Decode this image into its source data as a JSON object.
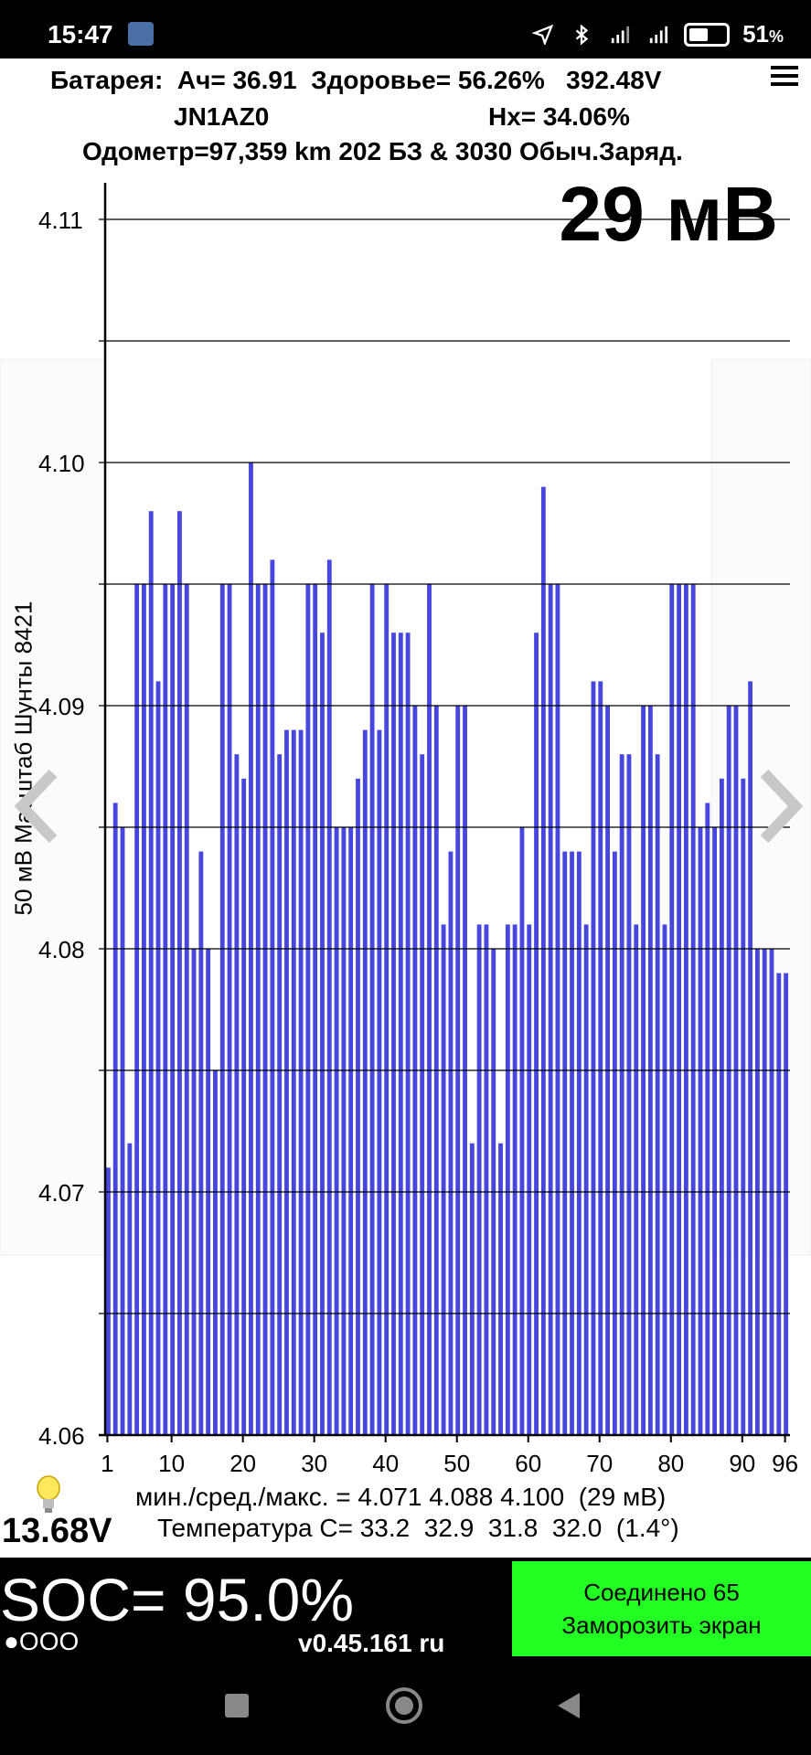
{
  "status_bar": {
    "time": "15:47",
    "battery_percent": "51",
    "battery_unit": "%",
    "icons": [
      "car-icon",
      "location-icon",
      "bluetooth-icon",
      "signal-icon",
      "signal-icon",
      "battery-icon"
    ]
  },
  "header": {
    "line1": "Батарея:  Ач= 36.91  Здоровье= 56.26%   392.48V",
    "vin": "JN1AZ0",
    "hx": "Hx= 34.06%",
    "line3": "Одометр=97,359 km 202 БЗ & 3030 Обыч.Заряд.",
    "big_value": "29 мВ"
  },
  "chart_data": {
    "type": "bar",
    "y_axis_label": "50 мВ Масштаб  Шунты 8421",
    "ylim": [
      4.06,
      4.11
    ],
    "y_ticks": [
      "4.11",
      "4.10",
      "4.09",
      "4.08",
      "4.07",
      "4.06"
    ],
    "x_ticks": [
      "1",
      "10",
      "20",
      "30",
      "40",
      "50",
      "60",
      "70",
      "80",
      "90",
      "96"
    ],
    "bar_color": "#4747e0",
    "categories": [
      1,
      2,
      3,
      4,
      5,
      6,
      7,
      8,
      9,
      10,
      11,
      12,
      13,
      14,
      15,
      16,
      17,
      18,
      19,
      20,
      21,
      22,
      23,
      24,
      25,
      26,
      27,
      28,
      29,
      30,
      31,
      32,
      33,
      34,
      35,
      36,
      37,
      38,
      39,
      40,
      41,
      42,
      43,
      44,
      45,
      46,
      47,
      48,
      49,
      50,
      51,
      52,
      53,
      54,
      55,
      56,
      57,
      58,
      59,
      60,
      61,
      62,
      63,
      64,
      65,
      66,
      67,
      68,
      69,
      70,
      71,
      72,
      73,
      74,
      75,
      76,
      77,
      78,
      79,
      80,
      81,
      82,
      83,
      84,
      85,
      86,
      87,
      88,
      89,
      90,
      91,
      92,
      93,
      94,
      95,
      96
    ],
    "values": [
      4.071,
      4.086,
      4.085,
      4.072,
      4.095,
      4.095,
      4.098,
      4.091,
      4.095,
      4.095,
      4.098,
      4.095,
      4.08,
      4.084,
      4.08,
      4.075,
      4.095,
      4.095,
      4.088,
      4.087,
      4.1,
      4.095,
      4.095,
      4.096,
      4.088,
      4.089,
      4.089,
      4.089,
      4.095,
      4.095,
      4.093,
      4.096,
      4.085,
      4.085,
      4.085,
      4.087,
      4.089,
      4.095,
      4.089,
      4.095,
      4.093,
      4.093,
      4.093,
      4.09,
      4.088,
      4.095,
      4.09,
      4.081,
      4.084,
      4.09,
      4.09,
      4.072,
      4.081,
      4.081,
      4.08,
      4.072,
      4.081,
      4.081,
      4.085,
      4.081,
      4.093,
      4.099,
      4.095,
      4.095,
      4.084,
      4.084,
      4.084,
      4.081,
      4.091,
      4.091,
      4.09,
      4.084,
      4.088,
      4.088,
      4.081,
      4.09,
      4.09,
      4.088,
      4.081,
      4.095,
      4.095,
      4.095,
      4.095,
      4.085,
      4.086,
      4.085,
      4.087,
      4.09,
      4.09,
      4.087,
      4.091,
      4.08,
      4.08,
      4.08,
      4.079,
      4.079
    ]
  },
  "stats": {
    "minmax": "мин./сред./макс. = 4.071 4.088 4.100  (29 мВ)",
    "temperature": "Температура С= 33.2  32.9  31.8  32.0  (1.4°)"
  },
  "volt12": "13.68V",
  "soc": "SOC= 95.0%",
  "dots": "●OOO",
  "version": "v0.45.161 ru",
  "connect_button": {
    "line1": "Соединено 65",
    "line2": "Заморозить экран"
  }
}
